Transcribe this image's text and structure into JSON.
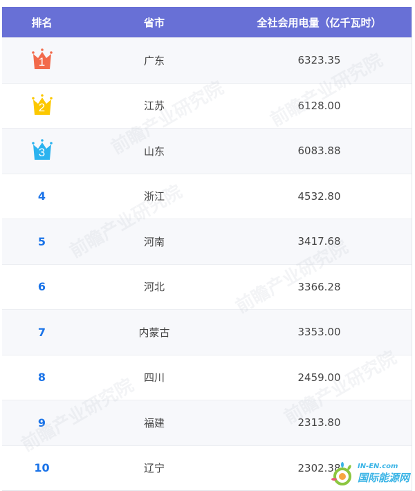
{
  "header": {
    "rank": "排名",
    "province": "省市",
    "value": "全社会用电量（亿千瓦时）"
  },
  "colors": {
    "header_bg": "#6870d6",
    "rank_text": "#1a73e8",
    "crown_1": "#f26a4b",
    "crown_2": "#fcc800",
    "crown_3": "#2bb3ef"
  },
  "rows": [
    {
      "rank": "1",
      "province": "广东",
      "value": "6323.35"
    },
    {
      "rank": "2",
      "province": "江苏",
      "value": "6128.00"
    },
    {
      "rank": "3",
      "province": "山东",
      "value": "6083.88"
    },
    {
      "rank": "4",
      "province": "浙江",
      "value": "4532.80"
    },
    {
      "rank": "5",
      "province": "河南",
      "value": "3417.68"
    },
    {
      "rank": "6",
      "province": "河北",
      "value": "3366.28"
    },
    {
      "rank": "7",
      "province": "内蒙古",
      "value": "3353.00"
    },
    {
      "rank": "8",
      "province": "四川",
      "value": "2459.00"
    },
    {
      "rank": "9",
      "province": "福建",
      "value": "2313.80"
    },
    {
      "rank": "10",
      "province": "辽宁",
      "value": "2302.38"
    }
  ],
  "watermark": "前瞻产业研究院",
  "logo": {
    "domain": "IN-EN.com",
    "name": "国际能源网"
  }
}
